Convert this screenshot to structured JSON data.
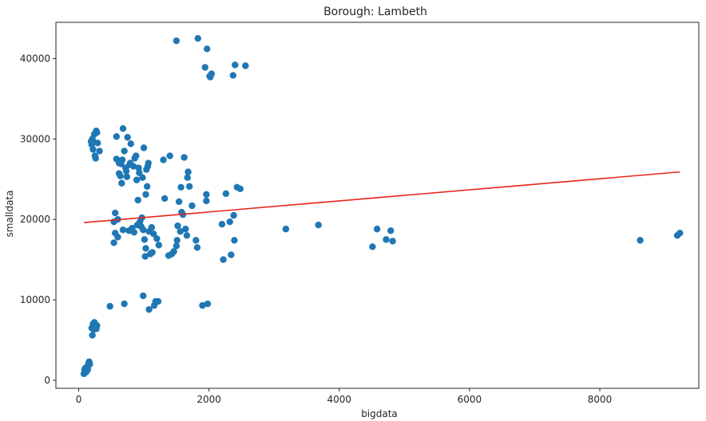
{
  "chart_data": {
    "type": "scatter",
    "title": "Borough: Lambeth",
    "xlabel": "bigdata",
    "ylabel": "smalldata",
    "xlim": [
      -350,
      9520
    ],
    "ylim": [
      -1000,
      44500
    ],
    "xticks": [
      0,
      2000,
      4000,
      6000,
      8000
    ],
    "yticks": [
      0,
      10000,
      20000,
      30000,
      40000
    ],
    "grid": false,
    "colors": {
      "points": "#1f77b4",
      "trend": "#e8241b",
      "axes": "#262626"
    },
    "trendline": {
      "x": [
        80,
        9230
      ],
      "y": [
        19600,
        25900
      ]
    },
    "points": [
      [
        80,
        800
      ],
      [
        90,
        1300
      ],
      [
        100,
        1500
      ],
      [
        110,
        1000
      ],
      [
        120,
        1600
      ],
      [
        130,
        1200
      ],
      [
        140,
        1400
      ],
      [
        150,
        2100
      ],
      [
        160,
        2300
      ],
      [
        170,
        2000
      ],
      [
        200,
        6500
      ],
      [
        210,
        5600
      ],
      [
        220,
        7000
      ],
      [
        230,
        6300
      ],
      [
        240,
        7200
      ],
      [
        250,
        6900
      ],
      [
        260,
        6700
      ],
      [
        270,
        6400
      ],
      [
        280,
        6800
      ],
      [
        190,
        29700
      ],
      [
        200,
        29300
      ],
      [
        210,
        30000
      ],
      [
        220,
        28700
      ],
      [
        230,
        29600
      ],
      [
        240,
        30600
      ],
      [
        250,
        27900
      ],
      [
        260,
        27600
      ],
      [
        270,
        31000
      ],
      [
        280,
        30800
      ],
      [
        290,
        29500
      ],
      [
        320,
        28500
      ],
      [
        540,
        17100
      ],
      [
        540,
        19700
      ],
      [
        560,
        18300
      ],
      [
        560,
        20800
      ],
      [
        580,
        27500
      ],
      [
        580,
        30300
      ],
      [
        600,
        20000
      ],
      [
        600,
        17800
      ],
      [
        620,
        25700
      ],
      [
        620,
        27000
      ],
      [
        640,
        25400
      ],
      [
        650,
        26900
      ],
      [
        660,
        24500
      ],
      [
        670,
        27400
      ],
      [
        680,
        31300
      ],
      [
        680,
        18700
      ],
      [
        700,
        28500
      ],
      [
        720,
        26400
      ],
      [
        730,
        26000
      ],
      [
        740,
        25300
      ],
      [
        750,
        30200
      ],
      [
        770,
        18600
      ],
      [
        780,
        26800
      ],
      [
        790,
        27000
      ],
      [
        800,
        29400
      ],
      [
        820,
        18900
      ],
      [
        840,
        26600
      ],
      [
        850,
        18400
      ],
      [
        860,
        27600
      ],
      [
        880,
        27900
      ],
      [
        890,
        24900
      ],
      [
        900,
        19300
      ],
      [
        910,
        22400
      ],
      [
        920,
        26400
      ],
      [
        930,
        25800
      ],
      [
        940,
        19700
      ],
      [
        960,
        19100
      ],
      [
        970,
        20200
      ],
      [
        980,
        25200
      ],
      [
        990,
        18700
      ],
      [
        1000,
        28900
      ],
      [
        1010,
        17500
      ],
      [
        1020,
        15400
      ],
      [
        1030,
        16400
      ],
      [
        1030,
        23100
      ],
      [
        1040,
        26200
      ],
      [
        1050,
        24100
      ],
      [
        1060,
        26600
      ],
      [
        1070,
        27000
      ],
      [
        1080,
        18500
      ],
      [
        1100,
        15700
      ],
      [
        1120,
        19000
      ],
      [
        1130,
        15900
      ],
      [
        1150,
        18200
      ],
      [
        1180,
        9800
      ],
      [
        1200,
        17600
      ],
      [
        1220,
        9800
      ],
      [
        1230,
        16800
      ],
      [
        1300,
        27400
      ],
      [
        1320,
        22600
      ],
      [
        1380,
        15500
      ],
      [
        1400,
        27900
      ],
      [
        1430,
        15700
      ],
      [
        1460,
        16000
      ],
      [
        1500,
        16700
      ],
      [
        1510,
        17400
      ],
      [
        1520,
        19200
      ],
      [
        1540,
        22200
      ],
      [
        1560,
        18500
      ],
      [
        1570,
        24000
      ],
      [
        1580,
        20900
      ],
      [
        1600,
        20600
      ],
      [
        1620,
        27700
      ],
      [
        1640,
        18800
      ],
      [
        1660,
        18000
      ],
      [
        1670,
        25200
      ],
      [
        1680,
        25900
      ],
      [
        1700,
        24100
      ],
      [
        1740,
        21700
      ],
      [
        1800,
        17400
      ],
      [
        1820,
        16500
      ],
      [
        1960,
        23100
      ],
      [
        1960,
        22300
      ],
      [
        2200,
        19400
      ],
      [
        2220,
        15000
      ],
      [
        2260,
        23200
      ],
      [
        2320,
        19700
      ],
      [
        2340,
        15600
      ],
      [
        2380,
        20500
      ],
      [
        2390,
        17400
      ],
      [
        2430,
        24000
      ],
      [
        2480,
        23800
      ],
      [
        480,
        9200
      ],
      [
        700,
        9500
      ],
      [
        990,
        10500
      ],
      [
        1080,
        8800
      ],
      [
        1160,
        9300
      ],
      [
        1900,
        9300
      ],
      [
        1980,
        9500
      ],
      [
        1500,
        42200
      ],
      [
        1830,
        42500
      ],
      [
        1940,
        38900
      ],
      [
        1970,
        41200
      ],
      [
        2010,
        37800
      ],
      [
        2040,
        38100
      ],
      [
        2020,
        37700
      ],
      [
        2370,
        37900
      ],
      [
        2400,
        39200
      ],
      [
        2560,
        39100
      ],
      [
        3180,
        18800
      ],
      [
        3680,
        19300
      ],
      [
        4510,
        16600
      ],
      [
        4580,
        18800
      ],
      [
        4720,
        17500
      ],
      [
        4790,
        18600
      ],
      [
        4820,
        17300
      ],
      [
        8620,
        17400
      ],
      [
        9190,
        18000
      ],
      [
        9230,
        18300
      ]
    ]
  }
}
